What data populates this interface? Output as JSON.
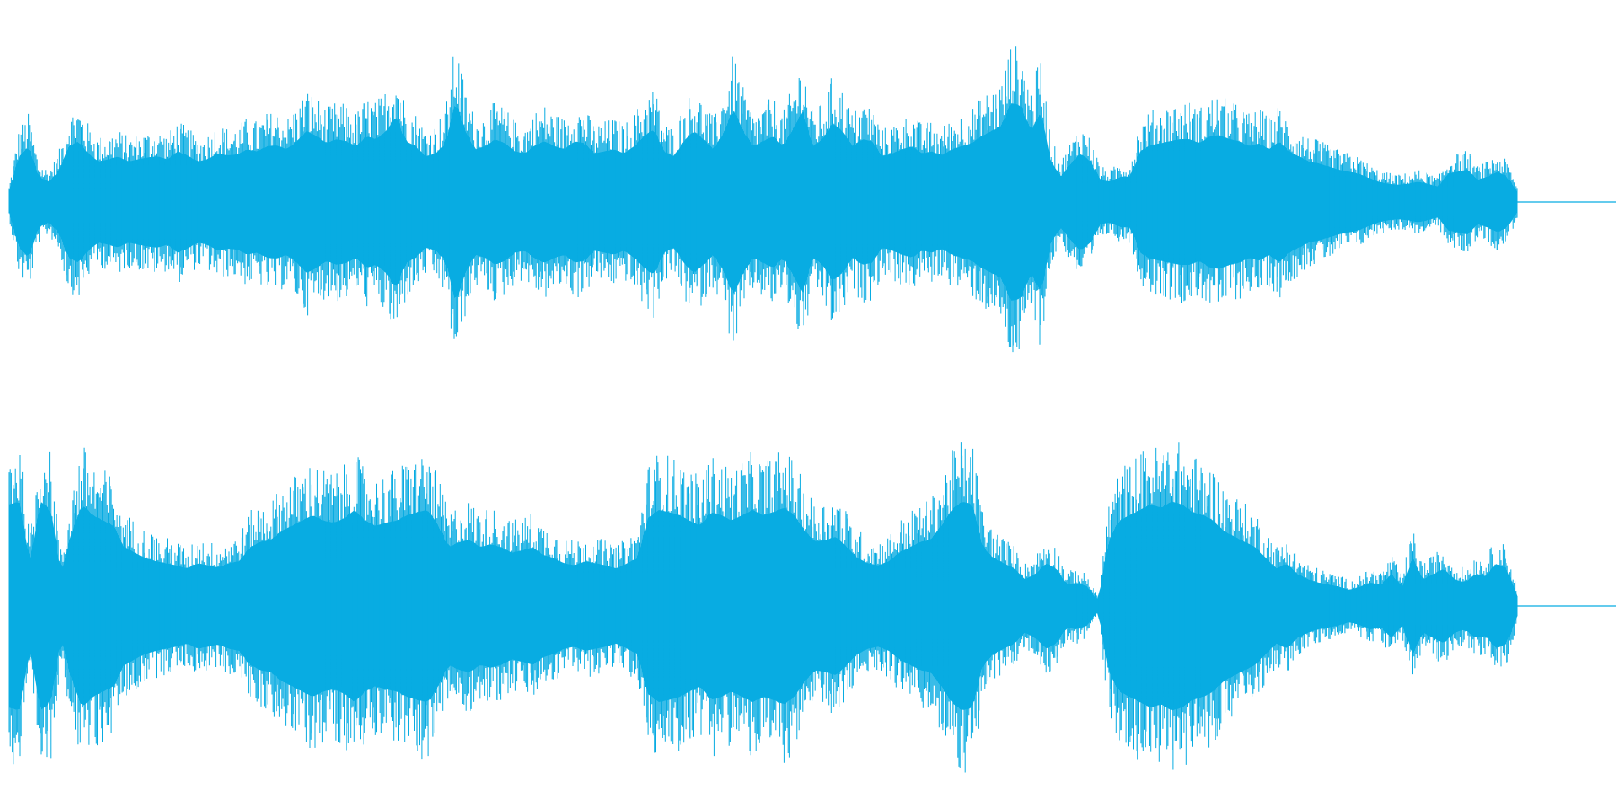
{
  "waveform": {
    "color": "#08ace2",
    "baseline_color": "#08ace2",
    "channel_count": 2,
    "channels": [
      {
        "name": "",
        "envelope": [
          0.1,
          0.45,
          0.55,
          0.25,
          0.2,
          0.3,
          0.55,
          0.6,
          0.48,
          0.4,
          0.42,
          0.45,
          0.4,
          0.42,
          0.44,
          0.45,
          0.42,
          0.5,
          0.46,
          0.4,
          0.42,
          0.48,
          0.46,
          0.47,
          0.52,
          0.5,
          0.55,
          0.56,
          0.52,
          0.6,
          0.7,
          0.65,
          0.58,
          0.62,
          0.6,
          0.55,
          0.65,
          0.62,
          0.7,
          0.85,
          0.6,
          0.55,
          0.45,
          0.48,
          0.58,
          1.0,
          0.7,
          0.52,
          0.55,
          0.62,
          0.58,
          0.5,
          0.48,
          0.56,
          0.6,
          0.55,
          0.52,
          0.6,
          0.58,
          0.48,
          0.5,
          0.52,
          0.48,
          0.55,
          0.65,
          0.72,
          0.5,
          0.45,
          0.6,
          0.7,
          0.62,
          0.52,
          0.68,
          0.92,
          0.7,
          0.55,
          0.6,
          0.65,
          0.55,
          0.72,
          0.9,
          0.55,
          0.62,
          0.78,
          0.7,
          0.55,
          0.62,
          0.6,
          0.45,
          0.48,
          0.52,
          0.55,
          0.48,
          0.5,
          0.46,
          0.52,
          0.55,
          0.58,
          0.65,
          0.7,
          0.75,
          0.98,
          0.95,
          0.7,
          0.9,
          0.4,
          0.25,
          0.38,
          0.48,
          0.4,
          0.22,
          0.2,
          0.25,
          0.25,
          0.5,
          0.56,
          0.58,
          0.6,
          0.62,
          0.62,
          0.58,
          0.65,
          0.66,
          0.62,
          0.6,
          0.55,
          0.58,
          0.52,
          0.6,
          0.5,
          0.45,
          0.4,
          0.38,
          0.35,
          0.32,
          0.3,
          0.28,
          0.24,
          0.2,
          0.18,
          0.17,
          0.18,
          0.2,
          0.18,
          0.15,
          0.28,
          0.3,
          0.32,
          0.22,
          0.25,
          0.3,
          0.25,
          0.1
        ]
      },
      {
        "name": "",
        "envelope": [
          0.95,
          0.98,
          0.4,
          0.98,
          0.9,
          0.3,
          0.7,
          0.95,
          0.85,
          0.8,
          0.75,
          0.55,
          0.5,
          0.45,
          0.42,
          0.4,
          0.38,
          0.35,
          0.4,
          0.38,
          0.36,
          0.4,
          0.42,
          0.55,
          0.6,
          0.62,
          0.7,
          0.75,
          0.8,
          0.85,
          0.8,
          0.78,
          0.82,
          0.9,
          0.8,
          0.75,
          0.78,
          0.8,
          0.85,
          0.88,
          0.9,
          0.75,
          0.55,
          0.6,
          0.62,
          0.55,
          0.58,
          0.55,
          0.5,
          0.52,
          0.55,
          0.48,
          0.45,
          0.4,
          0.38,
          0.42,
          0.4,
          0.38,
          0.35,
          0.4,
          0.45,
          0.82,
          0.9,
          0.88,
          0.85,
          0.8,
          0.75,
          0.88,
          0.85,
          0.8,
          0.85,
          0.9,
          0.85,
          0.88,
          0.92,
          0.85,
          0.7,
          0.6,
          0.62,
          0.65,
          0.55,
          0.45,
          0.4,
          0.38,
          0.42,
          0.5,
          0.55,
          0.6,
          0.62,
          0.75,
          0.9,
          0.98,
          0.95,
          0.55,
          0.45,
          0.4,
          0.35,
          0.25,
          0.3,
          0.4,
          0.35,
          0.2,
          0.22,
          0.18,
          0.05,
          0.62,
          0.8,
          0.85,
          0.9,
          0.95,
          0.92,
          0.98,
          0.95,
          0.88,
          0.85,
          0.8,
          0.7,
          0.65,
          0.6,
          0.55,
          0.45,
          0.35,
          0.4,
          0.3,
          0.25,
          0.22,
          0.2,
          0.18,
          0.15,
          0.18,
          0.22,
          0.2,
          0.3,
          0.18,
          0.45,
          0.25,
          0.3,
          0.35,
          0.25,
          0.22,
          0.3,
          0.28,
          0.4,
          0.35,
          0.1
        ]
      }
    ]
  }
}
